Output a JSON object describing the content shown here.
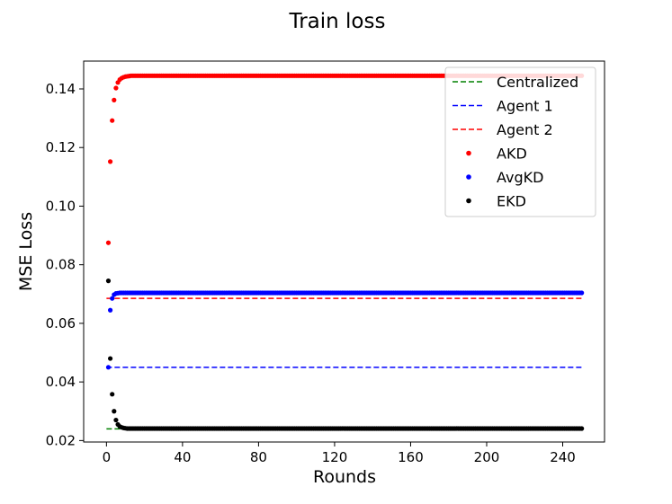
{
  "chart_data": {
    "type": "scatter",
    "title": "Train loss",
    "xlabel": "Rounds",
    "ylabel": "MSE Loss",
    "xlim": [
      -12,
      262
    ],
    "ylim": [
      0.0195,
      0.1495
    ],
    "xticks": [
      0,
      40,
      80,
      120,
      160,
      200,
      240
    ],
    "yticks": [
      0.02,
      0.04,
      0.06,
      0.08,
      0.1,
      0.12,
      0.14
    ],
    "ytick_labels": [
      "0.02",
      "0.04",
      "0.06",
      "0.08",
      "0.10",
      "0.12",
      "0.14"
    ],
    "grid": false,
    "legend_position": "top-right",
    "reference_lines": [
      {
        "name": "Centralized",
        "value": 0.024,
        "x_range": [
          0,
          250
        ],
        "color": "#008000",
        "style": "dashed"
      },
      {
        "name": "Agent 1",
        "value": 0.045,
        "x_range": [
          0,
          250
        ],
        "color": "#0000ff",
        "style": "dashed"
      },
      {
        "name": "Agent 2",
        "value": 0.0685,
        "x_range": [
          0,
          250
        ],
        "color": "#ff0000",
        "style": "dashed"
      }
    ],
    "series": [
      {
        "name": "AKD",
        "color": "#ff0000",
        "marker": "dot",
        "initial_x": [
          1,
          2,
          3,
          4,
          5,
          6,
          7,
          8,
          9,
          10,
          11,
          12
        ],
        "initial_y": [
          0.0875,
          0.1152,
          0.1292,
          0.1362,
          0.1403,
          0.1422,
          0.1432,
          0.1437,
          0.144,
          0.1442,
          0.1443,
          0.1444
        ],
        "plateau": 0.1445,
        "plateau_from": 13,
        "plateau_to": 250
      },
      {
        "name": "AvgKD",
        "color": "#0000ff",
        "marker": "dot",
        "initial_x": [
          1,
          2,
          3,
          4,
          5,
          6,
          7
        ],
        "initial_y": [
          0.045,
          0.0645,
          0.0685,
          0.0698,
          0.0702,
          0.0703,
          0.0704
        ],
        "plateau": 0.0704,
        "plateau_from": 8,
        "plateau_to": 250
      },
      {
        "name": "EKD",
        "color": "#000000",
        "marker": "dot",
        "initial_x": [
          1,
          2,
          3,
          4,
          5,
          6,
          7,
          8,
          9,
          10
        ],
        "initial_y": [
          0.0745,
          0.048,
          0.0358,
          0.03,
          0.027,
          0.0255,
          0.0248,
          0.0245,
          0.0243,
          0.0242
        ],
        "plateau": 0.0241,
        "plateau_from": 11,
        "plateau_to": 250
      }
    ]
  }
}
